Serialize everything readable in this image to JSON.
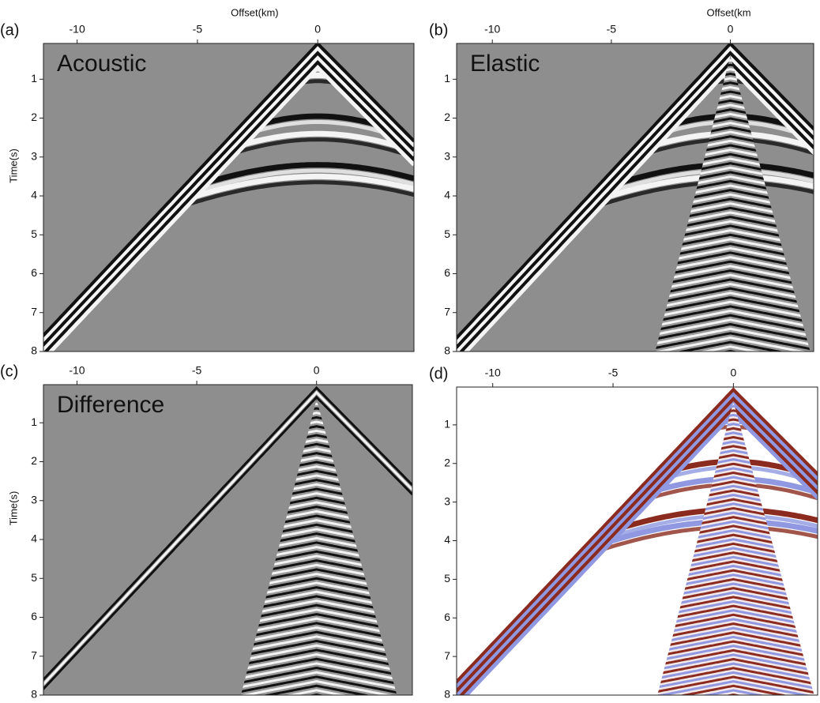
{
  "chart_data": [
    {
      "type": "seismic",
      "panel": "(a)",
      "title": "Acoustic",
      "xlabel": "Offset(km)",
      "ylabel": "Time(s)",
      "background": "#8e8e8e",
      "xlim": [
        -11.4,
        4
      ],
      "ylim": [
        0.08,
        8
      ],
      "xticks": [
        -10,
        -5,
        0
      ],
      "yticks": [
        1,
        2,
        3,
        4,
        5,
        6,
        7,
        8
      ]
    },
    {
      "type": "seismic",
      "panel": "(b)",
      "title": "Elastic",
      "xlabel": "Offset(km",
      "background": "#8e8e8e",
      "xlim": [
        -11.5,
        3.5
      ],
      "ylim": [
        0.08,
        8
      ],
      "xticks": [
        -10,
        -5,
        0
      ],
      "yticks": [
        1,
        2,
        3,
        4,
        5,
        6,
        7,
        8
      ]
    },
    {
      "type": "seismic",
      "panel": "(c)",
      "title": "Difference",
      "ylabel": "Time(s)",
      "background": "#8e8e8e",
      "xlim": [
        -11.4,
        4
      ],
      "ylim": [
        0.02,
        8
      ],
      "xticks": [
        -10,
        -5,
        0
      ],
      "yticks": [
        1,
        2,
        3,
        4,
        5,
        6,
        7,
        8
      ]
    },
    {
      "type": "seismic",
      "panel": "(d)",
      "background": "#ffffff",
      "xlim": [
        -11.5,
        3.5
      ],
      "ylim": [
        0.02,
        8
      ],
      "xticks": [
        -10,
        -5,
        0
      ],
      "yticks": [
        1,
        2,
        3,
        4,
        5,
        6,
        7,
        8
      ]
    }
  ]
}
